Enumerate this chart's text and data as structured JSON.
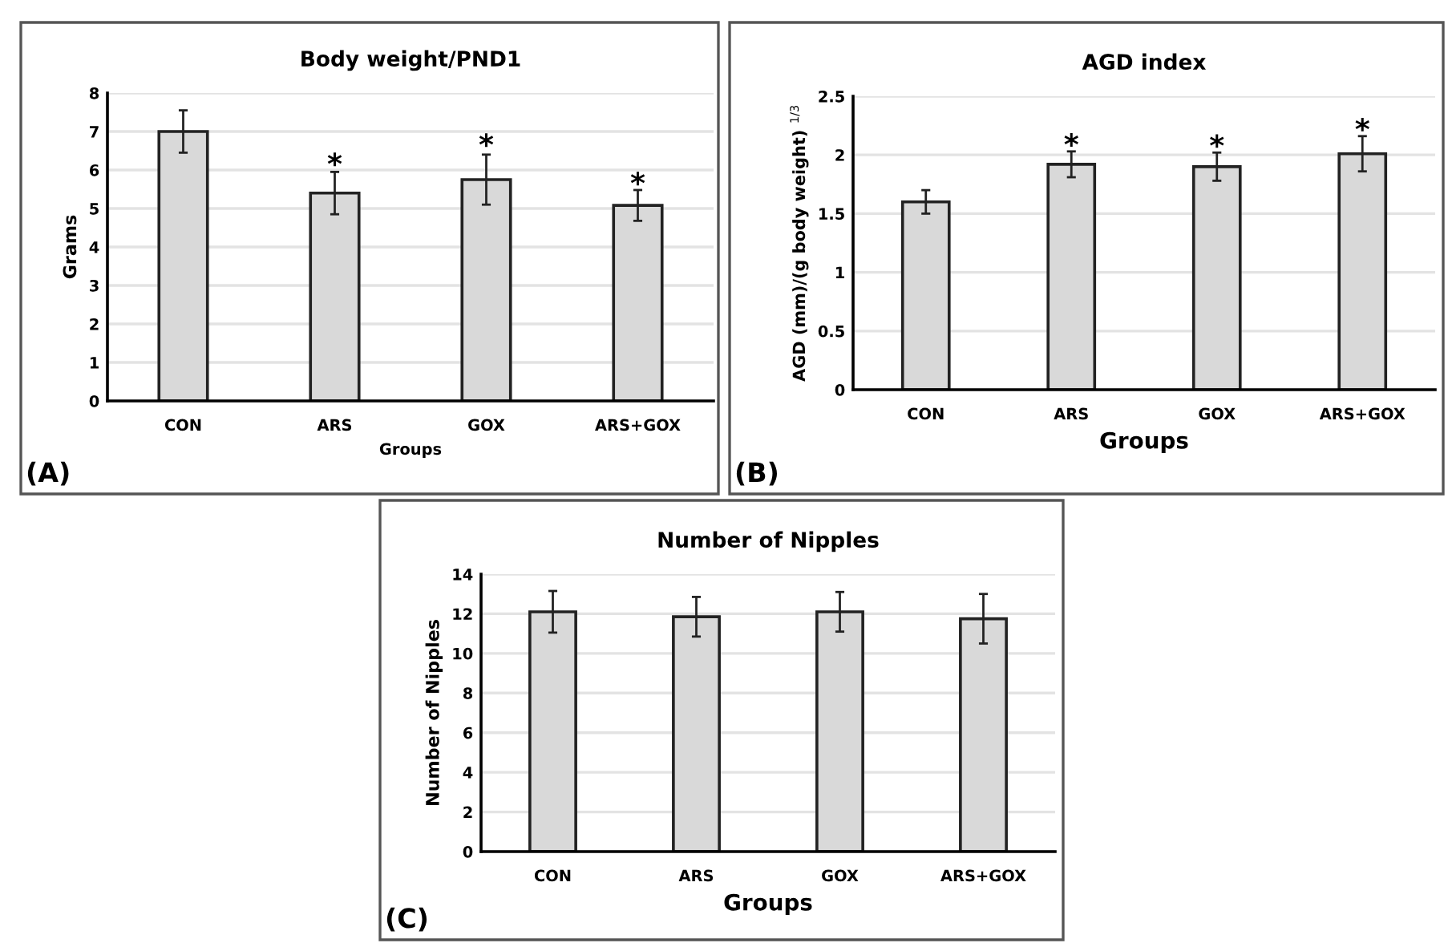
{
  "chart_data": [
    {
      "type": "bar",
      "title": "Body weight/PND1",
      "xlabel": "Groups",
      "ylabel": "Grams",
      "categories": [
        "CON",
        "ARS",
        "GOX",
        "ARS+GOX"
      ],
      "values": [
        7.0,
        5.4,
        5.75,
        5.08
      ],
      "errors": [
        0.55,
        0.55,
        0.65,
        0.4
      ],
      "color": "#d9d9d9",
      "ylim": [
        0,
        8
      ],
      "yticks": [
        0,
        1,
        2,
        3,
        4,
        5,
        6,
        7,
        8
      ],
      "grid": "y",
      "annotations": [
        {
          "text": "*",
          "x": "ARS",
          "y": 6.1
        },
        {
          "text": "*",
          "x": "GOX",
          "y": 6.6
        },
        {
          "text": "*",
          "x": "ARS+GOX",
          "y": 5.6
        },
        "(A)"
      ]
    },
    {
      "type": "bar",
      "title": "AGD index",
      "xlabel": "Groups",
      "ylabel": "AGD (mm)/(g body weight) $^{1/3}$",
      "categories": [
        "CON",
        "ARS",
        "GOX",
        "ARS+GOX"
      ],
      "values": [
        1.6,
        1.92,
        1.9,
        2.01
      ],
      "errors": [
        0.1,
        0.11,
        0.12,
        0.15
      ],
      "color": "#d9d9d9",
      "ylim": [
        0,
        2.5
      ],
      "yticks": [
        0,
        0.5,
        1,
        1.5,
        2,
        2.5
      ],
      "grid": "y",
      "annotations": [
        {
          "text": "*",
          "x": "ARS",
          "y": 2.07
        },
        {
          "text": "*",
          "x": "GOX",
          "y": 2.06
        },
        {
          "text": "*",
          "x": "ARS+GOX",
          "y": 2.2
        },
        "(B)"
      ]
    },
    {
      "type": "bar",
      "title": "Number of Nipples",
      "xlabel": "Groups",
      "ylabel": "Number of Nipples",
      "categories": [
        "CON",
        "ARS",
        "GOX",
        "ARS+GOX"
      ],
      "values": [
        12.1,
        11.85,
        12.1,
        11.75
      ],
      "errors": [
        1.05,
        1.0,
        1.0,
        1.25
      ],
      "color": "#d9d9d9",
      "ylim": [
        0,
        14
      ],
      "yticks": [
        0,
        2,
        4,
        6,
        8,
        10,
        12,
        14
      ],
      "grid": "y",
      "annotations": [
        "(C)"
      ]
    }
  ]
}
